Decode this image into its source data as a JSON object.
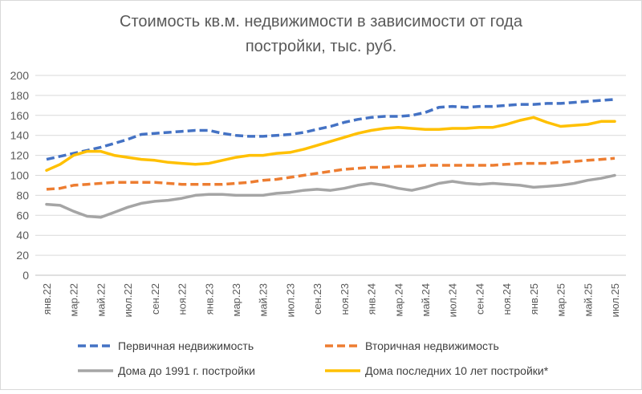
{
  "chart_data": {
    "type": "line",
    "title_lines": [
      "Стоимость кв.м. недвижимости в зависимости от года",
      "постройки, тыс. руб."
    ],
    "ylim": [
      0,
      200
    ],
    "yticks": [
      0,
      20,
      40,
      60,
      80,
      100,
      120,
      140,
      160,
      180,
      200
    ],
    "x": [
      "янв.22",
      "фев.22",
      "мар.22",
      "апр.22",
      "май.22",
      "июн.22",
      "июл.22",
      "авг.22",
      "сен.22",
      "окт.22",
      "ноя.22",
      "дек.22",
      "янв.23",
      "фев.23",
      "мар.23",
      "апр.23",
      "май.23",
      "июн.23",
      "июл.23",
      "авг.23",
      "сен.23",
      "окт.23",
      "ноя.23",
      "дек.23",
      "янв.24",
      "фев.24",
      "мар.24",
      "апр.24",
      "май.24",
      "июн.24",
      "июл.24",
      "авг.24",
      "сен.24",
      "окт.24",
      "ноя.24",
      "дек.24",
      "янв.25",
      "фев.25",
      "мар.25",
      "апр.25",
      "май.25",
      "июн.25",
      "июл.25"
    ],
    "x_tick_labels": [
      "янв.22",
      "мар.22",
      "май.22",
      "июл.22",
      "сен.22",
      "ноя.22",
      "янв.23",
      "мар.23",
      "май.23",
      "июл.23",
      "сен.23",
      "ноя.23",
      "янв.24",
      "мар.24",
      "май.24",
      "июл.24",
      "сен.24",
      "ноя.24",
      "янв.25",
      "мар.25",
      "май.25",
      "июл.25"
    ],
    "grid": true,
    "legend_position": "bottom",
    "series": [
      {
        "name": "Первичная недвижимость",
        "color": "#4472C4",
        "dash": "dashed",
        "values": [
          116,
          119,
          122,
          125,
          128,
          132,
          136,
          141,
          142,
          143,
          144,
          145,
          145,
          142,
          140,
          139,
          139,
          140,
          141,
          143,
          146,
          149,
          153,
          156,
          158,
          159,
          159,
          160,
          163,
          168,
          169,
          168,
          169,
          169,
          170,
          171,
          171,
          172,
          172,
          173,
          174,
          175,
          176
        ]
      },
      {
        "name": "Вторичная недвижимость",
        "color": "#ED7D31",
        "dash": "dashed",
        "values": [
          86,
          87,
          90,
          91,
          92,
          93,
          93,
          93,
          93,
          92,
          91,
          91,
          91,
          91,
          92,
          93,
          95,
          96,
          98,
          100,
          102,
          104,
          106,
          107,
          108,
          108,
          109,
          109,
          110,
          110,
          110,
          110,
          110,
          110,
          111,
          112,
          112,
          112,
          113,
          114,
          115,
          116,
          117
        ]
      },
      {
        "name": "Дома до 1991 г. постройки",
        "color": "#A5A5A5",
        "dash": "solid",
        "values": [
          71,
          70,
          64,
          59,
          58,
          63,
          68,
          72,
          74,
          75,
          77,
          80,
          81,
          81,
          80,
          80,
          80,
          82,
          83,
          85,
          86,
          85,
          87,
          90,
          92,
          90,
          87,
          85,
          88,
          92,
          94,
          92,
          91,
          92,
          91,
          90,
          88,
          89,
          90,
          92,
          95,
          97,
          100
        ]
      },
      {
        "name": "Дома последних 10 лет постройки*",
        "color": "#FFC000",
        "dash": "solid",
        "values": [
          105,
          111,
          120,
          124,
          124,
          120,
          118,
          116,
          115,
          113,
          112,
          111,
          112,
          115,
          118,
          120,
          120,
          122,
          123,
          126,
          130,
          134,
          138,
          142,
          145,
          147,
          148,
          147,
          146,
          146,
          147,
          147,
          148,
          148,
          151,
          155,
          158,
          153,
          149,
          150,
          151,
          154,
          154
        ]
      }
    ]
  }
}
